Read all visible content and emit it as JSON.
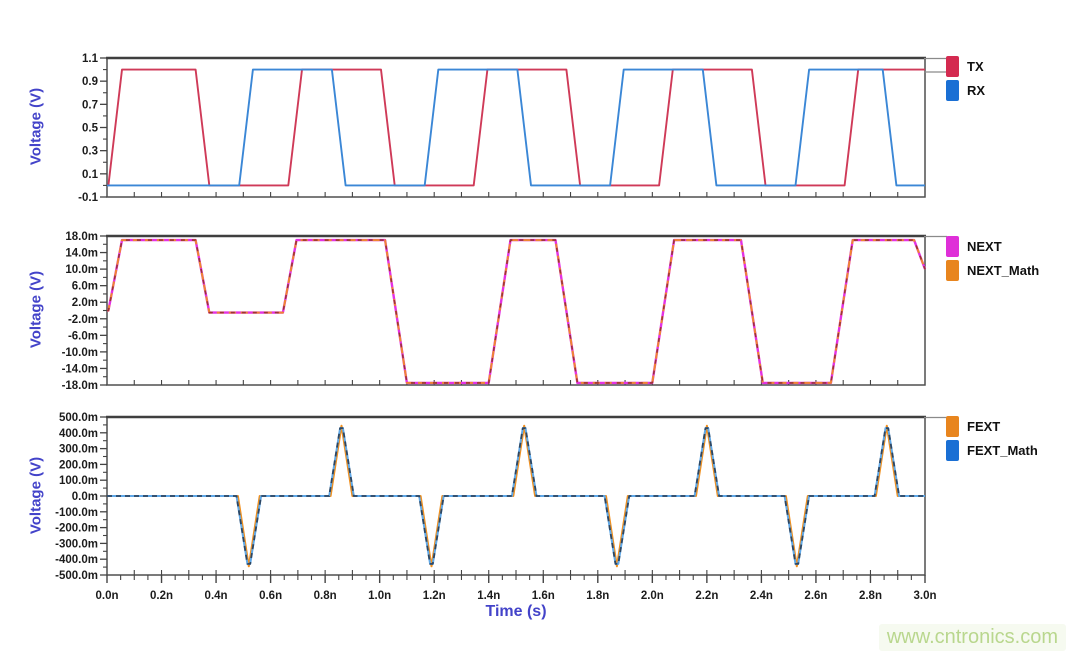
{
  "watermark": {
    "text": "www.cntronics.com",
    "color": "#b9d78e"
  },
  "xaxis": {
    "label": "Time (s)",
    "unit": "n",
    "tick_labels": [
      "0.0n",
      "0.2n",
      "0.4n",
      "0.6n",
      "0.8n",
      "1.0n",
      "1.2n",
      "1.4n",
      "1.6n",
      "1.8n",
      "2.0n",
      "2.2n",
      "2.4n",
      "2.6n",
      "2.8n",
      "3.0n"
    ],
    "tick_values": [
      0,
      0.2,
      0.4,
      0.6,
      0.8,
      1.0,
      1.2,
      1.4,
      1.6,
      1.8,
      2.0,
      2.2,
      2.4,
      2.6,
      2.8,
      3.0
    ],
    "minor_step": 0.05
  },
  "chart_data": [
    {
      "type": "line",
      "ylabel": "Voltage (V)",
      "xlabel": "Time (s)",
      "xlim": [
        0,
        3
      ],
      "ylim": [
        -0.1,
        1.1
      ],
      "yunit": "V",
      "grid": false,
      "legend_position": "right",
      "ytick_labels": [
        "1.1",
        "0.9",
        "0.7",
        "0.5",
        "0.3",
        "0.1",
        "-0.1"
      ],
      "ytick_values": [
        1.1,
        0.9,
        0.7,
        0.5,
        0.3,
        0.1,
        -0.1
      ],
      "yminor_values": [
        1.0,
        0.8,
        0.6,
        0.4,
        0.2,
        0.0
      ],
      "series": [
        {
          "name": "TX",
          "swatch": "#d42a50",
          "stroke": "#cf3a58",
          "width": 1.9,
          "points": [
            [
              0,
              0
            ],
            [
              0.005,
              0
            ],
            [
              0.055,
              1
            ],
            [
              0.325,
              1
            ],
            [
              0.375,
              0
            ],
            [
              0.665,
              0
            ],
            [
              0.715,
              1
            ],
            [
              1.005,
              1
            ],
            [
              1.055,
              0
            ],
            [
              1.345,
              0
            ],
            [
              1.395,
              1
            ],
            [
              1.685,
              1
            ],
            [
              1.735,
              0
            ],
            [
              2.025,
              0
            ],
            [
              2.075,
              1
            ],
            [
              2.365,
              1
            ],
            [
              2.415,
              0
            ],
            [
              2.705,
              0
            ],
            [
              2.755,
              1
            ],
            [
              3,
              1
            ]
          ]
        },
        {
          "name": "RX",
          "swatch": "#1a6fd4",
          "stroke": "#3b87d6",
          "width": 1.9,
          "points": [
            [
              0,
              0
            ],
            [
              0.485,
              0
            ],
            [
              0.535,
              1
            ],
            [
              0.825,
              1
            ],
            [
              0.875,
              0
            ],
            [
              1.165,
              0
            ],
            [
              1.215,
              1
            ],
            [
              1.505,
              1
            ],
            [
              1.555,
              0
            ],
            [
              1.845,
              0
            ],
            [
              1.895,
              1
            ],
            [
              2.185,
              1
            ],
            [
              2.235,
              0
            ],
            [
              2.525,
              0
            ],
            [
              2.575,
              1
            ],
            [
              2.845,
              1
            ],
            [
              2.895,
              0
            ],
            [
              3,
              0
            ]
          ]
        }
      ]
    },
    {
      "type": "line",
      "ylabel": "Voltage (V)",
      "xlabel": "Time (s)",
      "xlim": [
        0,
        3
      ],
      "ylim": [
        -18,
        18
      ],
      "yunit": "mV",
      "grid": false,
      "legend_position": "right",
      "ytick_labels": [
        "18.0m",
        "14.0m",
        "10.0m",
        "6.0m",
        "2.0m",
        "-2.0m",
        "-6.0m",
        "-10.0m",
        "-14.0m",
        "-18.0m"
      ],
      "ytick_values": [
        18,
        14,
        10,
        6,
        2,
        -2,
        -6,
        -10,
        -14,
        -18
      ],
      "yminor_values": [
        16,
        12,
        8,
        4,
        0,
        -4,
        -8,
        -12,
        -16
      ],
      "series": [
        {
          "name": "NEXT",
          "swatch": "#df2fd8",
          "stroke": "#e431e4",
          "width": 2.4,
          "points": [
            [
              0,
              0
            ],
            [
              0.005,
              0
            ],
            [
              0.055,
              17
            ],
            [
              0.325,
              17
            ],
            [
              0.375,
              -0.5
            ],
            [
              0.645,
              -0.5
            ],
            [
              0.695,
              17
            ],
            [
              1.02,
              17
            ],
            [
              1.1,
              -17.5
            ],
            [
              1.4,
              -17.5
            ],
            [
              1.48,
              17
            ],
            [
              1.645,
              17
            ],
            [
              1.725,
              -17.5
            ],
            [
              2,
              -17.5
            ],
            [
              2.08,
              17
            ],
            [
              2.325,
              17
            ],
            [
              2.405,
              -17.5
            ],
            [
              2.655,
              -17.5
            ],
            [
              2.735,
              17
            ],
            [
              2.96,
              17
            ],
            [
              3,
              10
            ]
          ]
        },
        {
          "name": "NEXT_Math",
          "swatch": "#e8851e",
          "stroke": "#ef8632",
          "width": 2,
          "dash": "7,5",
          "overlay": {
            "stroke": "#9a3535",
            "dash": "4,7",
            "width": 1.6
          },
          "points": [
            [
              0,
              0
            ],
            [
              0.005,
              0
            ],
            [
              0.055,
              17
            ],
            [
              0.325,
              17
            ],
            [
              0.375,
              -0.5
            ],
            [
              0.645,
              -0.5
            ],
            [
              0.695,
              17
            ],
            [
              1.02,
              17
            ],
            [
              1.1,
              -17.5
            ],
            [
              1.4,
              -17.5
            ],
            [
              1.48,
              17
            ],
            [
              1.645,
              17
            ],
            [
              1.725,
              -17.5
            ],
            [
              2,
              -17.5
            ],
            [
              2.08,
              17
            ],
            [
              2.325,
              17
            ],
            [
              2.405,
              -17.5
            ],
            [
              2.655,
              -17.5
            ],
            [
              2.735,
              17
            ],
            [
              2.96,
              17
            ],
            [
              3,
              10
            ]
          ]
        }
      ]
    },
    {
      "type": "line",
      "ylabel": "Voltage (V)",
      "xlabel": "Time (s)",
      "xlim": [
        0,
        3
      ],
      "ylim": [
        -500,
        500
      ],
      "yunit": "mV",
      "grid": false,
      "legend_position": "right",
      "ytick_labels": [
        "500.0m",
        "400.0m",
        "300.0m",
        "200.0m",
        "100.0m",
        "0.0m",
        "-100.0m",
        "-200.0m",
        "-300.0m",
        "-400.0m",
        "-500.0m"
      ],
      "ytick_values": [
        500,
        400,
        300,
        200,
        100,
        0,
        -100,
        -200,
        -300,
        -400,
        -500
      ],
      "yminor_values": [
        450,
        350,
        250,
        150,
        50,
        -50,
        -150,
        -250,
        -350,
        -450
      ],
      "series": [
        {
          "name": "FEXT",
          "swatch": "#e8851e",
          "stroke": "#f09020",
          "width": 2,
          "points": [
            [
              0,
              0
            ],
            [
              0.48,
              0
            ],
            [
              0.52,
              -445
            ],
            [
              0.56,
              0
            ],
            [
              0.82,
              0
            ],
            [
              0.86,
              445
            ],
            [
              0.9,
              0
            ],
            [
              1.15,
              0
            ],
            [
              1.19,
              -445
            ],
            [
              1.23,
              0
            ],
            [
              1.49,
              0
            ],
            [
              1.53,
              445
            ],
            [
              1.57,
              0
            ],
            [
              1.83,
              0
            ],
            [
              1.87,
              -445
            ],
            [
              1.91,
              0
            ],
            [
              2.16,
              0
            ],
            [
              2.2,
              445
            ],
            [
              2.24,
              0
            ],
            [
              2.49,
              0
            ],
            [
              2.53,
              -445
            ],
            [
              2.57,
              0
            ],
            [
              2.82,
              0
            ],
            [
              2.86,
              445
            ],
            [
              2.9,
              0
            ],
            [
              3,
              0
            ]
          ]
        },
        {
          "name": "FEXT_Math",
          "swatch": "#1a6fd4",
          "stroke": "#5fa8e8",
          "width": 2,
          "overlay": {
            "stroke": "#2e4661",
            "dash": "5,4",
            "width": 1.8
          },
          "points": [
            [
              0,
              0
            ],
            [
              0.475,
              0
            ],
            [
              0.515,
              -430
            ],
            [
              0.525,
              -430
            ],
            [
              0.565,
              0
            ],
            [
              0.815,
              0
            ],
            [
              0.855,
              430
            ],
            [
              0.865,
              430
            ],
            [
              0.905,
              0
            ],
            [
              1.145,
              0
            ],
            [
              1.185,
              -430
            ],
            [
              1.195,
              -430
            ],
            [
              1.235,
              0
            ],
            [
              1.485,
              0
            ],
            [
              1.525,
              430
            ],
            [
              1.535,
              430
            ],
            [
              1.575,
              0
            ],
            [
              1.825,
              0
            ],
            [
              1.865,
              -430
            ],
            [
              1.875,
              -430
            ],
            [
              1.915,
              0
            ],
            [
              2.155,
              0
            ],
            [
              2.195,
              430
            ],
            [
              2.205,
              430
            ],
            [
              2.245,
              0
            ],
            [
              2.485,
              0
            ],
            [
              2.525,
              -430
            ],
            [
              2.535,
              -430
            ],
            [
              2.575,
              0
            ],
            [
              2.815,
              0
            ],
            [
              2.855,
              430
            ],
            [
              2.865,
              430
            ],
            [
              2.905,
              0
            ],
            [
              3,
              0
            ]
          ]
        }
      ]
    }
  ]
}
